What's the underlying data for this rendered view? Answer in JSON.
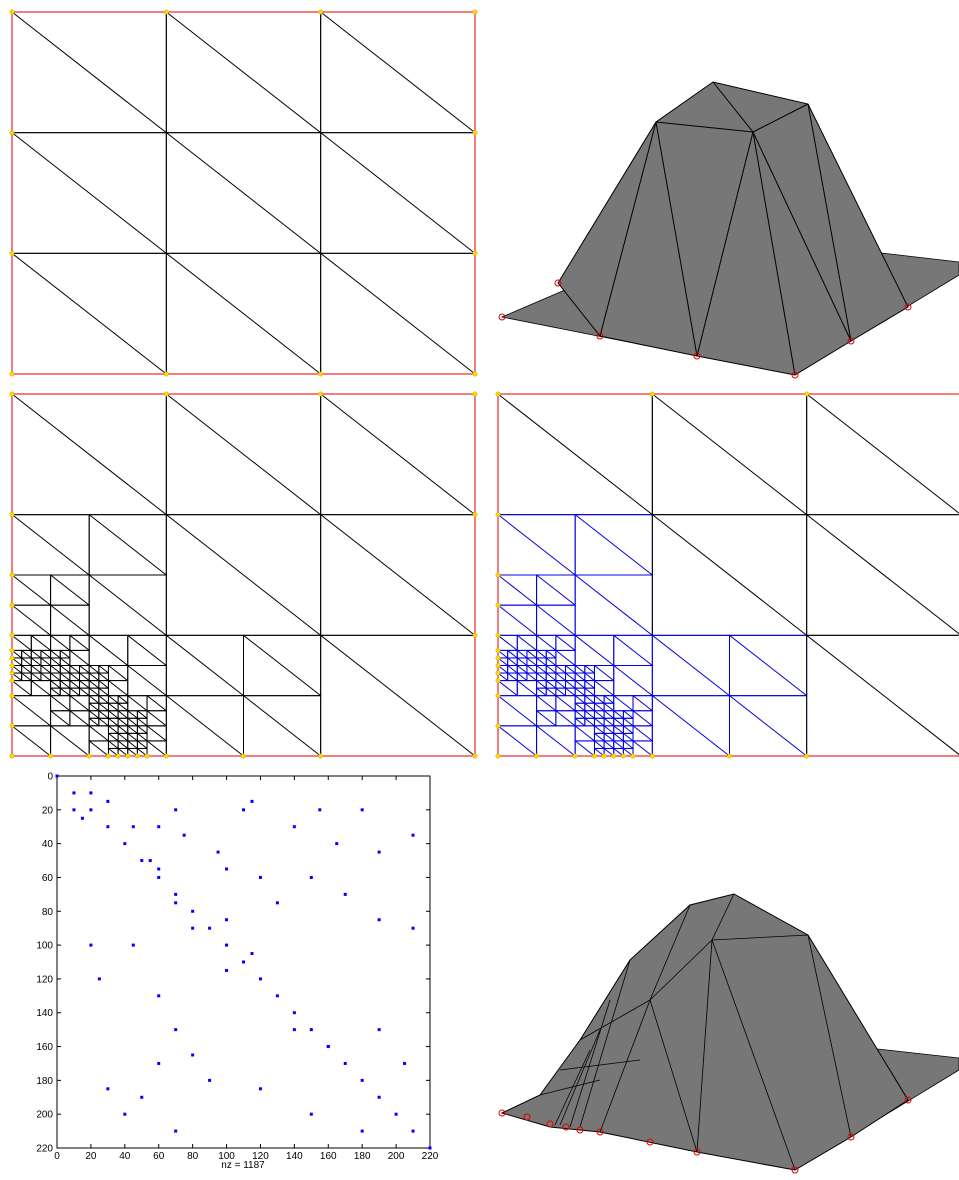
{
  "chart_data": {
    "type": "scatter",
    "xlabel": "nz = 1187",
    "color": "#0000ff",
    "xlim": [
      0,
      220
    ],
    "ylim": [
      0,
      220
    ],
    "yreverse": true,
    "xticks": [
      0,
      20,
      40,
      60,
      80,
      100,
      120,
      140,
      160,
      180,
      200,
      220
    ],
    "yticks": [
      0,
      20,
      40,
      60,
      80,
      100,
      120,
      140,
      160,
      180,
      200,
      220
    ],
    "x": [
      0,
      10,
      20,
      30,
      40,
      50,
      60,
      70,
      80,
      90,
      100,
      110,
      120,
      130,
      140,
      150,
      160,
      170,
      180,
      190,
      200,
      210,
      220,
      20,
      30,
      60,
      70,
      75,
      95,
      100,
      110,
      115,
      140,
      155,
      165,
      180,
      190,
      210,
      120,
      130,
      150,
      170,
      190,
      210,
      70,
      80,
      100,
      115,
      20,
      25,
      45,
      60,
      70,
      80,
      90,
      60,
      30,
      40,
      50,
      70,
      140,
      160,
      120,
      150,
      180,
      190,
      205,
      100,
      10,
      15,
      45,
      55,
      60
    ],
    "y": [
      0,
      10,
      20,
      30,
      40,
      50,
      60,
      70,
      80,
      90,
      100,
      110,
      120,
      130,
      140,
      150,
      160,
      170,
      180,
      190,
      200,
      210,
      220,
      10,
      15,
      30,
      20,
      35,
      45,
      55,
      20,
      15,
      30,
      20,
      40,
      20,
      45,
      35,
      60,
      75,
      60,
      70,
      85,
      90,
      75,
      90,
      85,
      105,
      100,
      120,
      100,
      130,
      150,
      165,
      180,
      170,
      185,
      200,
      190,
      210,
      150,
      160,
      185,
      200,
      210,
      150,
      170,
      115,
      20,
      25,
      30,
      50,
      55
    ]
  }
}
